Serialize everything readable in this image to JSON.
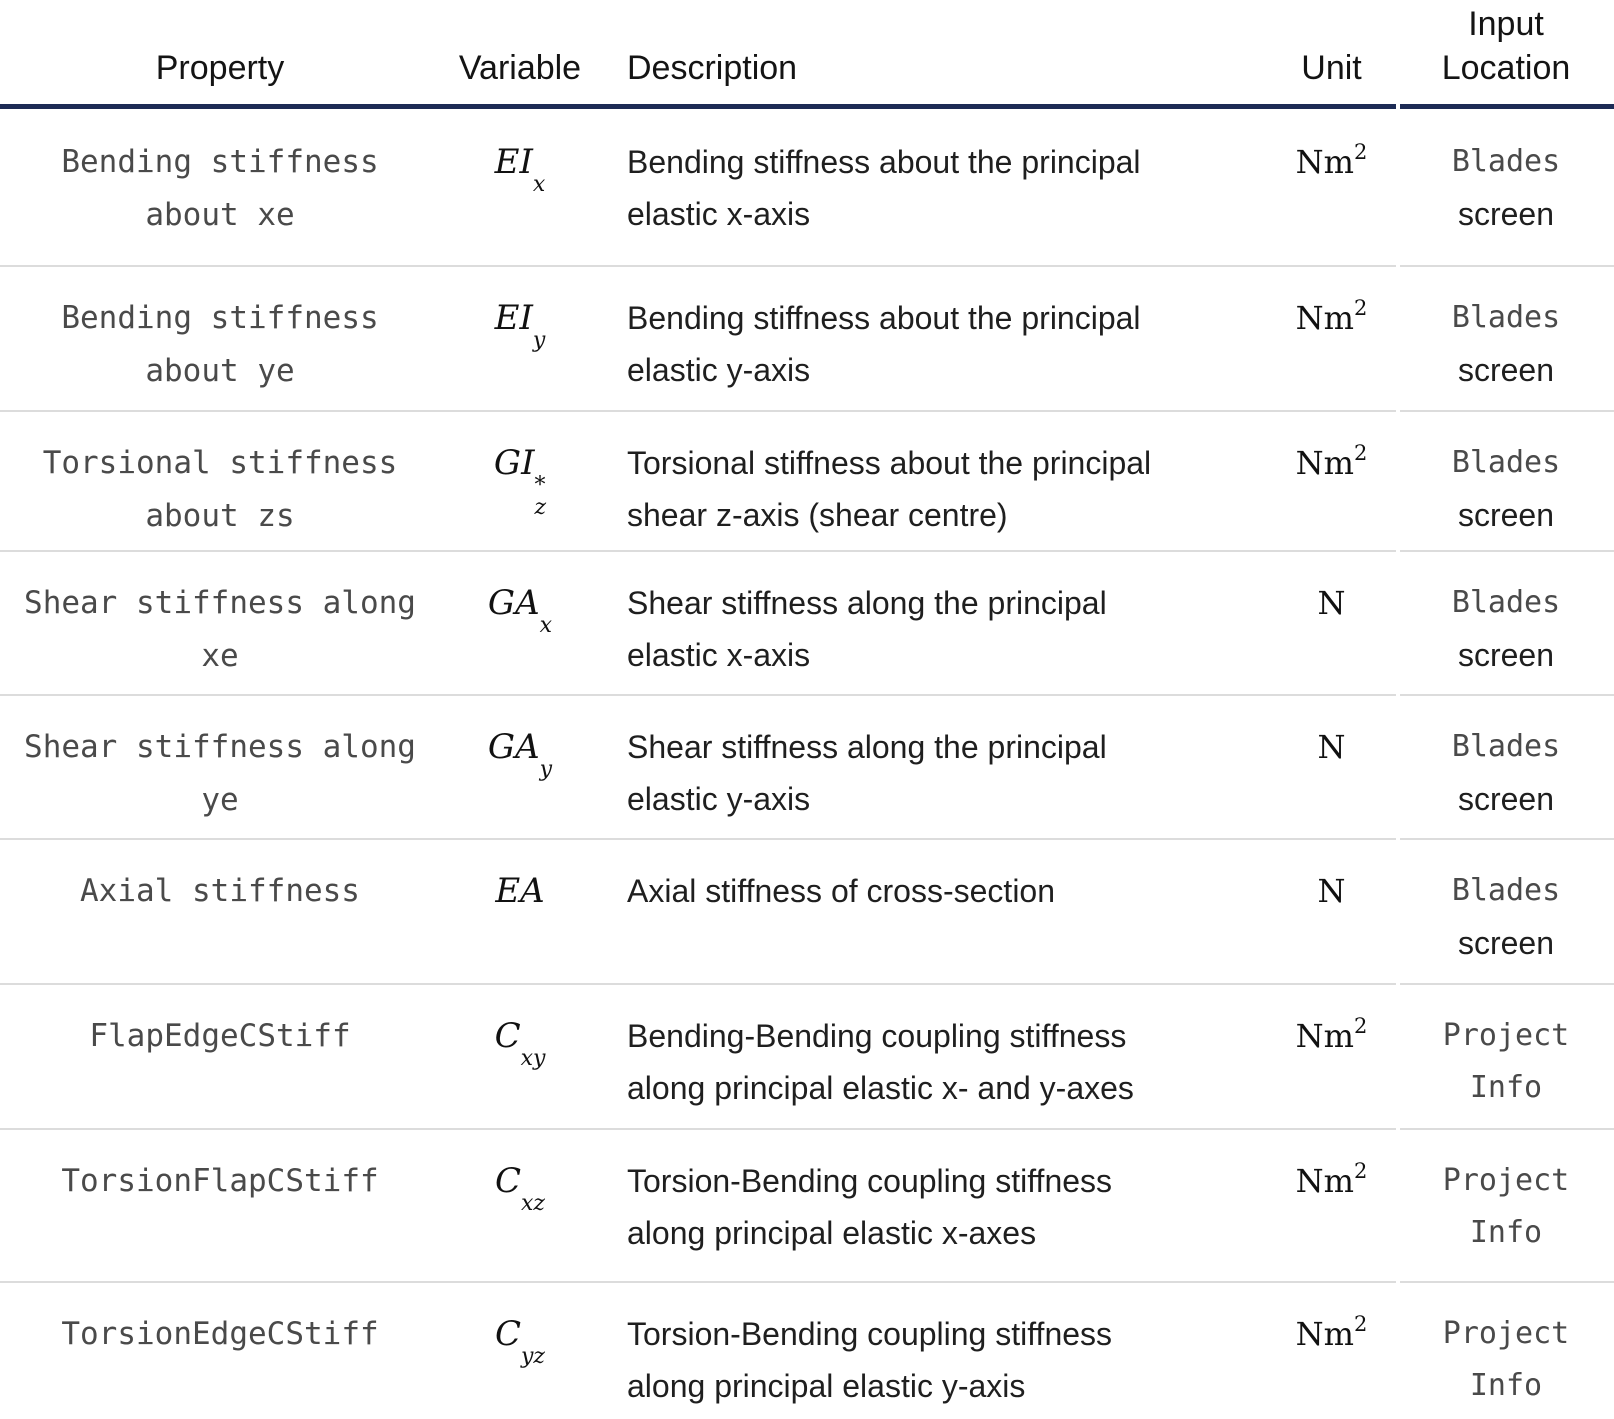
{
  "theme": {
    "header_rule_color": "#1d2b55",
    "row_separator_color": "#dcdcdc",
    "code_text_color": "#4a4a4a",
    "body_text_color": "#1f1f1f"
  },
  "header": {
    "columns": [
      "Property",
      "Variable",
      "Description",
      "Unit",
      "Input\nLocation"
    ]
  },
  "rows": [
    {
      "property": "Bending stiffness\nabout xe",
      "variable": {
        "base": "EI",
        "sup": "",
        "sub": "x"
      },
      "description": "Bending stiffness about the principal\nelastic x-axis",
      "unit": {
        "base": "Nm",
        "sup": "2"
      },
      "location": {
        "code": "Blades",
        "plain": "screen"
      }
    },
    {
      "property": "Bending stiffness\nabout ye",
      "variable": {
        "base": "EI",
        "sup": "",
        "sub": "y"
      },
      "description": "Bending stiffness about the principal\nelastic y-axis",
      "unit": {
        "base": "Nm",
        "sup": "2"
      },
      "location": {
        "code": "Blades",
        "plain": "screen"
      }
    },
    {
      "property": "Torsional stiffness\nabout zs",
      "variable": {
        "base": "GI",
        "sup": "*",
        "sub": "z"
      },
      "description": "Torsional stiffness about the principal\nshear z-axis (shear centre)",
      "unit": {
        "base": "Nm",
        "sup": "2"
      },
      "location": {
        "code": "Blades",
        "plain": "screen"
      }
    },
    {
      "property": "Shear stiffness along\nxe",
      "variable": {
        "base": "GA",
        "sup": "",
        "sub": "x"
      },
      "description": "Shear stiffness along the principal\nelastic x-axis",
      "unit": {
        "base": "N",
        "sup": ""
      },
      "location": {
        "code": "Blades",
        "plain": "screen"
      }
    },
    {
      "property": "Shear stiffness along\nye",
      "variable": {
        "base": "GA",
        "sup": "",
        "sub": "y"
      },
      "description": "Shear stiffness along the principal\nelastic y-axis",
      "unit": {
        "base": "N",
        "sup": ""
      },
      "location": {
        "code": "Blades",
        "plain": "screen"
      }
    },
    {
      "property": "Axial stiffness",
      "variable": {
        "base": "EA",
        "sup": "",
        "sub": ""
      },
      "description": "Axial stiffness of cross-section",
      "unit": {
        "base": "N",
        "sup": ""
      },
      "location": {
        "code": "Blades",
        "plain": "screen"
      }
    },
    {
      "property": "FlapEdgeCStiff",
      "variable": {
        "base": "C",
        "sup": "",
        "sub": "xy"
      },
      "description": "Bending-Bending coupling stiffness\nalong principal elastic x- and y-axes",
      "unit": {
        "base": "Nm",
        "sup": "2"
      },
      "location": {
        "code": "Project\nInfo",
        "plain": ""
      }
    },
    {
      "property": "TorsionFlapCStiff",
      "variable": {
        "base": "C",
        "sup": "",
        "sub": "xz"
      },
      "description": "Torsion-Bending coupling stiffness\nalong principal elastic x-axes",
      "unit": {
        "base": "Nm",
        "sup": "2"
      },
      "location": {
        "code": "Project\nInfo",
        "plain": ""
      }
    },
    {
      "property": "TorsionEdgeCStiff",
      "variable": {
        "base": "C",
        "sup": "",
        "sub": "yz"
      },
      "description": "Torsion-Bending coupling stiffness\nalong principal elastic y-axis",
      "unit": {
        "base": "Nm",
        "sup": "2"
      },
      "location": {
        "code": "Project\nInfo",
        "plain": ""
      }
    }
  ]
}
